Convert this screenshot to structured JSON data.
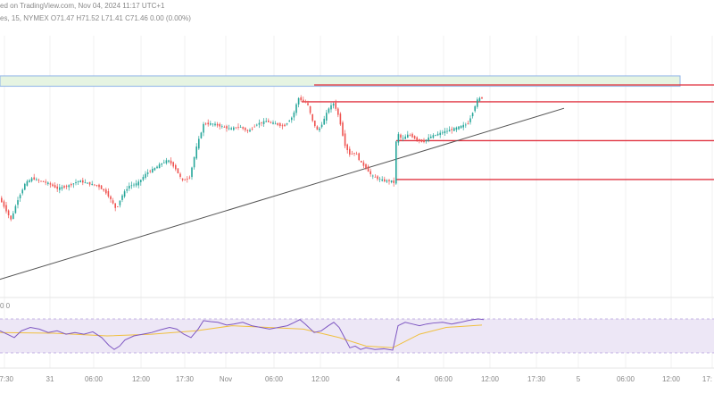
{
  "header": {
    "published_line": "ed on TradingView.com, Nov 04, 2024 11:17 UTC+1",
    "symbol_line": "es, 15, NYMEX O71.47 H71.52 L71.41 C71.46 0.00 (0.00%)",
    "indicator_label": "0 0"
  },
  "colors": {
    "bull": "#26a69a",
    "bear": "#ef5350",
    "trendline": "#555555",
    "level_line": "#e03340",
    "zone_fill": "#e6f4e2",
    "zone_border": "#8fb4e8",
    "rsi_line": "#7e57c2",
    "rsi_ma": "#f0c040",
    "rsi_band": "#ede7f6"
  },
  "chart_data": {
    "type": "candlestick",
    "x_tick_labels": [
      "17:30",
      "31",
      "06:00",
      "12:00",
      "17:30",
      "Nov",
      "06:00",
      "12:00",
      "4",
      "06:00",
      "12:00",
      "17:30",
      "5",
      "06:00",
      "12:00",
      "17:"
    ],
    "price_series": [
      [
        0,
        0.62
      ],
      [
        8,
        0.67
      ],
      [
        14,
        0.71
      ],
      [
        22,
        0.63
      ],
      [
        30,
        0.57
      ],
      [
        38,
        0.55
      ],
      [
        46,
        0.56
      ],
      [
        56,
        0.57
      ],
      [
        66,
        0.59
      ],
      [
        78,
        0.58
      ],
      [
        90,
        0.56
      ],
      [
        100,
        0.57
      ],
      [
        112,
        0.58
      ],
      [
        122,
        0.61
      ],
      [
        132,
        0.67
      ],
      [
        138,
        0.62
      ],
      [
        146,
        0.58
      ],
      [
        156,
        0.57
      ],
      [
        166,
        0.53
      ],
      [
        176,
        0.51
      ],
      [
        184,
        0.49
      ],
      [
        190,
        0.48
      ],
      [
        198,
        0.51
      ],
      [
        206,
        0.56
      ],
      [
        214,
        0.55
      ],
      [
        222,
        0.43
      ],
      [
        230,
        0.34
      ],
      [
        240,
        0.34
      ],
      [
        250,
        0.35
      ],
      [
        260,
        0.36
      ],
      [
        270,
        0.35
      ],
      [
        280,
        0.37
      ],
      [
        290,
        0.34
      ],
      [
        300,
        0.33
      ],
      [
        310,
        0.34
      ],
      [
        320,
        0.35
      ],
      [
        330,
        0.31
      ],
      [
        336,
        0.24
      ],
      [
        340,
        0.25
      ],
      [
        346,
        0.26
      ],
      [
        352,
        0.33
      ],
      [
        358,
        0.37
      ],
      [
        364,
        0.33
      ],
      [
        370,
        0.28
      ],
      [
        376,
        0.26
      ],
      [
        382,
        0.32
      ],
      [
        388,
        0.42
      ],
      [
        394,
        0.46
      ],
      [
        400,
        0.45
      ],
      [
        406,
        0.49
      ],
      [
        412,
        0.51
      ],
      [
        418,
        0.54
      ],
      [
        424,
        0.55
      ],
      [
        432,
        0.56
      ],
      [
        440,
        0.56
      ],
      [
        444,
        0.57
      ],
      [
        446,
        0.37
      ],
      [
        452,
        0.4
      ],
      [
        460,
        0.38
      ],
      [
        468,
        0.4
      ],
      [
        476,
        0.41
      ],
      [
        484,
        0.39
      ],
      [
        492,
        0.38
      ],
      [
        500,
        0.37
      ],
      [
        510,
        0.36
      ],
      [
        518,
        0.35
      ],
      [
        526,
        0.34
      ],
      [
        532,
        0.29
      ],
      [
        536,
        0.25
      ],
      [
        540,
        0.24
      ]
    ],
    "annotations": {
      "trendline": [
        [
          0,
          0.94
        ],
        [
          632,
          0.28
        ]
      ],
      "zone": [
        [
          0,
          0.155
        ],
        [
          762,
          0.195
        ]
      ],
      "levels": [
        {
          "x_from": 352,
          "x_to": 800,
          "y": 0.19
        },
        {
          "x_from": 338,
          "x_to": 800,
          "y": 0.255
        },
        {
          "x_from": 444,
          "x_to": 800,
          "y": 0.405
        },
        {
          "x_from": 444,
          "x_to": 800,
          "y": 0.555
        }
      ]
    },
    "rsi_series": [
      [
        0,
        0.35
      ],
      [
        8,
        0.45
      ],
      [
        16,
        0.55
      ],
      [
        24,
        0.35
      ],
      [
        34,
        0.25
      ],
      [
        44,
        0.3
      ],
      [
        54,
        0.4
      ],
      [
        64,
        0.35
      ],
      [
        74,
        0.45
      ],
      [
        84,
        0.4
      ],
      [
        94,
        0.45
      ],
      [
        104,
        0.38
      ],
      [
        114,
        0.55
      ],
      [
        122,
        0.78
      ],
      [
        128,
        0.9
      ],
      [
        134,
        0.8
      ],
      [
        140,
        0.62
      ],
      [
        150,
        0.5
      ],
      [
        160,
        0.45
      ],
      [
        170,
        0.4
      ],
      [
        180,
        0.32
      ],
      [
        190,
        0.25
      ],
      [
        198,
        0.3
      ],
      [
        206,
        0.45
      ],
      [
        214,
        0.55
      ],
      [
        222,
        0.3
      ],
      [
        228,
        0.05
      ],
      [
        236,
        0.08
      ],
      [
        244,
        0.1
      ],
      [
        254,
        0.18
      ],
      [
        262,
        0.15
      ],
      [
        272,
        0.1
      ],
      [
        282,
        0.2
      ],
      [
        292,
        0.25
      ],
      [
        302,
        0.3
      ],
      [
        312,
        0.25
      ],
      [
        322,
        0.2
      ],
      [
        330,
        0.1
      ],
      [
        336,
        0.02
      ],
      [
        342,
        0.15
      ],
      [
        352,
        0.4
      ],
      [
        360,
        0.35
      ],
      [
        368,
        0.2
      ],
      [
        374,
        0.1
      ],
      [
        380,
        0.25
      ],
      [
        386,
        0.55
      ],
      [
        392,
        0.85
      ],
      [
        398,
        0.8
      ],
      [
        404,
        0.9
      ],
      [
        410,
        0.85
      ],
      [
        420,
        0.9
      ],
      [
        430,
        0.88
      ],
      [
        440,
        0.92
      ],
      [
        446,
        0.2
      ],
      [
        454,
        0.1
      ],
      [
        462,
        0.15
      ],
      [
        470,
        0.2
      ],
      [
        478,
        0.15
      ],
      [
        486,
        0.12
      ],
      [
        496,
        0.1
      ],
      [
        506,
        0.15
      ],
      [
        516,
        0.1
      ],
      [
        524,
        0.05
      ],
      [
        530,
        0.02
      ],
      [
        536,
        0.0
      ],
      [
        542,
        0.02
      ]
    ],
    "rsi_ma_series": [
      [
        0,
        0.4
      ],
      [
        60,
        0.42
      ],
      [
        120,
        0.5
      ],
      [
        170,
        0.45
      ],
      [
        220,
        0.35
      ],
      [
        260,
        0.2
      ],
      [
        300,
        0.25
      ],
      [
        340,
        0.3
      ],
      [
        380,
        0.55
      ],
      [
        410,
        0.8
      ],
      [
        440,
        0.85
      ],
      [
        470,
        0.45
      ],
      [
        500,
        0.25
      ],
      [
        540,
        0.18
      ]
    ]
  }
}
